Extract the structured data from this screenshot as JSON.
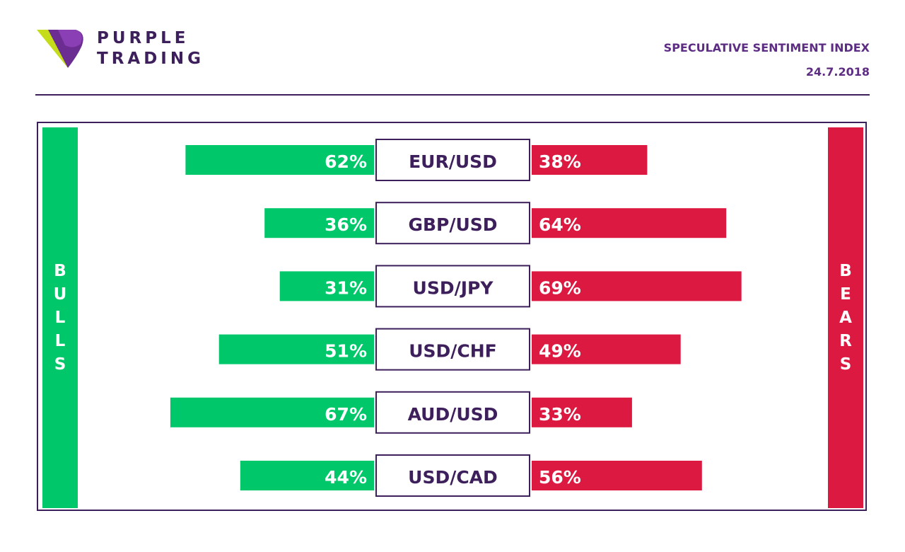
{
  "brand": {
    "line1": "PURPLE",
    "line2": "TRADING"
  },
  "header": {
    "title": "SPECULATIVE SENTIMENT INDEX",
    "date": "24.7.2018"
  },
  "side_labels": {
    "bulls": "BULLS",
    "bears": "BEARS"
  },
  "colors": {
    "bulls": "#00c86a",
    "bears": "#dc1a41",
    "brand": "#3d1f5c",
    "accent": "#5c2d83"
  },
  "chart_data": {
    "type": "bar",
    "categories": [
      "EUR/USD",
      "GBP/USD",
      "USD/JPY",
      "USD/CHF",
      "AUD/USD",
      "USD/CAD"
    ],
    "series": [
      {
        "name": "BULLS",
        "values": [
          62,
          36,
          31,
          51,
          67,
          44
        ]
      },
      {
        "name": "BEARS",
        "values": [
          38,
          64,
          69,
          49,
          33,
          56
        ]
      }
    ],
    "value_suffix": "%"
  }
}
